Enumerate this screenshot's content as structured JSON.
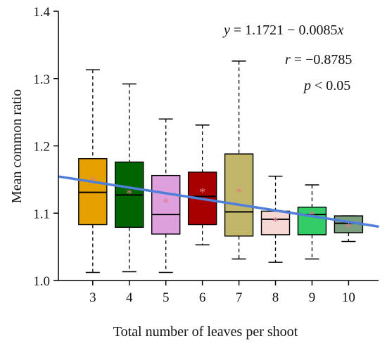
{
  "chart_data": {
    "type": "box",
    "xlabel": "Total number of leaves per shoot",
    "ylabel": "Mean common ratio",
    "ylim": [
      1.0,
      1.4
    ],
    "yticks": [
      "1.0",
      "1.1",
      "1.2",
      "1.3",
      "1.4"
    ],
    "grid": false,
    "categories": [
      "3",
      "4",
      "5",
      "6",
      "7",
      "8",
      "9",
      "10"
    ],
    "boxes": [
      {
        "x": 3,
        "min": 1.012,
        "q1": 1.083,
        "median": 1.131,
        "q3": 1.181,
        "max": 1.313,
        "mean": 1.15,
        "color": "#e6a100"
      },
      {
        "x": 4,
        "min": 1.013,
        "q1": 1.079,
        "median": 1.127,
        "q3": 1.176,
        "max": 1.292,
        "mean": 1.131,
        "color": "#006400"
      },
      {
        "x": 5,
        "min": 1.012,
        "q1": 1.069,
        "median": 1.098,
        "q3": 1.156,
        "max": 1.24,
        "mean": 1.118,
        "color": "#dda0dd"
      },
      {
        "x": 6,
        "min": 1.053,
        "q1": 1.083,
        "median": 1.125,
        "q3": 1.161,
        "max": 1.231,
        "mean": 1.133,
        "color": "#a80000"
      },
      {
        "x": 7,
        "min": 1.032,
        "q1": 1.066,
        "median": 1.102,
        "q3": 1.188,
        "max": 1.326,
        "mean": 1.133,
        "color": "#c2b66b"
      },
      {
        "x": 8,
        "min": 1.027,
        "q1": 1.068,
        "median": 1.091,
        "q3": 1.103,
        "max": 1.155,
        "mean": 1.09,
        "color": "#f8d8d4"
      },
      {
        "x": 9,
        "min": 1.032,
        "q1": 1.068,
        "median": 1.098,
        "q3": 1.109,
        "max": 1.142,
        "mean": 1.099,
        "color": "#33cc66"
      },
      {
        "x": 10,
        "min": 1.058,
        "q1": 1.071,
        "median": 1.085,
        "q3": 1.096,
        "max": 1.096,
        "mean": 1.081,
        "color": "#7a9e7e"
      }
    ],
    "mean_marker": "*",
    "mean_marker_color": "#e07a8a",
    "fit_line": {
      "equation": "y = 1.1721 − 0.0085x",
      "intercept": 1.1721,
      "slope": -0.0085,
      "color": "#4f7fd8"
    },
    "annotations": [
      "y = 1.1721 − 0.0085x",
      "r = −0.8785",
      "p < 0.05"
    ]
  }
}
